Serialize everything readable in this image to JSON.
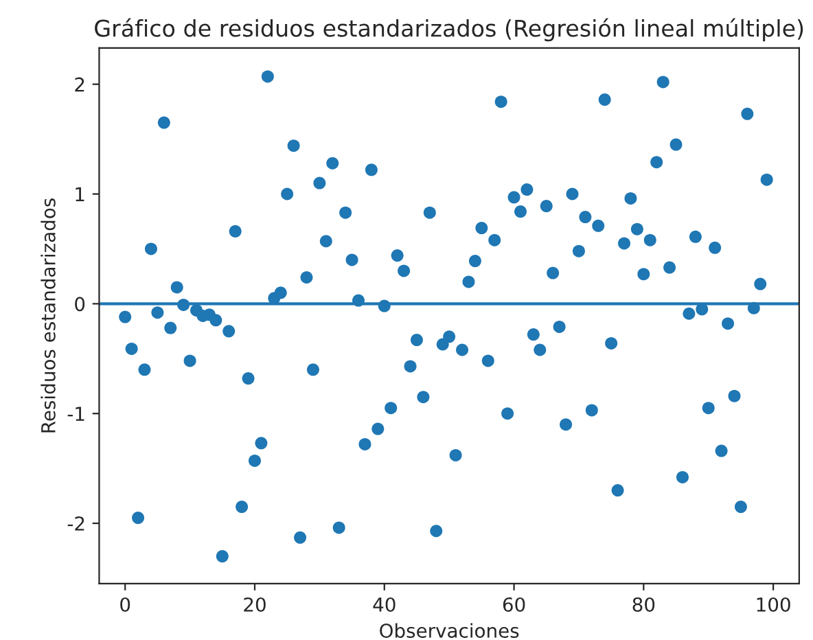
{
  "chart_data": {
    "type": "scatter",
    "title": "Gráfico de residuos estandarizados (Regresión lineal múltiple)",
    "xlabel": "Observaciones",
    "ylabel": "Residuos estandarizados",
    "x": [
      0,
      1,
      2,
      3,
      4,
      5,
      6,
      7,
      8,
      9,
      10,
      11,
      12,
      13,
      14,
      15,
      16,
      17,
      18,
      19,
      20,
      21,
      22,
      23,
      24,
      25,
      26,
      27,
      28,
      29,
      30,
      31,
      32,
      33,
      34,
      35,
      36,
      37,
      38,
      39,
      40,
      41,
      42,
      43,
      44,
      45,
      46,
      47,
      48,
      49,
      50,
      51,
      52,
      53,
      54,
      55,
      56,
      57,
      58,
      59,
      60,
      61,
      62,
      63,
      64,
      65,
      66,
      67,
      68,
      69,
      70,
      71,
      72,
      73,
      74,
      75,
      76,
      77,
      78,
      79,
      80,
      81,
      82,
      83,
      84,
      85,
      86,
      87,
      88,
      89,
      90,
      91,
      92,
      93,
      94,
      95,
      96,
      97,
      98,
      99
    ],
    "series": [
      {
        "color": "#1f77b4",
        "values": [
          -0.12,
          -0.41,
          -1.95,
          -0.6,
          0.5,
          -0.08,
          1.65,
          -0.22,
          0.15,
          -0.01,
          -0.52,
          -0.06,
          -0.11,
          -0.1,
          -0.15,
          -2.3,
          -0.25,
          0.66,
          -1.85,
          -0.68,
          -1.43,
          -1.27,
          2.07,
          0.05,
          0.1,
          1.0,
          1.44,
          -2.13,
          0.24,
          -0.6,
          1.1,
          0.57,
          1.28,
          -2.04,
          0.83,
          0.4,
          0.03,
          -1.28,
          1.22,
          -1.14,
          -0.02,
          -0.95,
          0.44,
          0.3,
          -0.57,
          -0.33,
          -0.85,
          0.83,
          -2.07,
          -0.37,
          -0.3,
          -1.38,
          -0.42,
          0.2,
          0.39,
          0.69,
          -0.52,
          0.58,
          1.84,
          -1.0,
          0.97,
          0.84,
          1.04,
          -0.28,
          -0.42,
          0.89,
          0.28,
          -0.21,
          -1.1,
          1.0,
          0.48,
          0.79,
          -0.97,
          0.71,
          1.86,
          -0.36,
          -1.7,
          0.55,
          0.96,
          0.68,
          0.27,
          0.58,
          1.29,
          2.02,
          0.33,
          1.45,
          -1.58,
          -0.09,
          0.61,
          -0.05,
          -0.95,
          0.51,
          -1.34,
          -0.18,
          -0.84,
          -1.85,
          1.73,
          -0.04,
          0.18,
          1.13
        ]
      }
    ],
    "xlim": [
      -4,
      104
    ],
    "ylim": [
      -2.55,
      2.33
    ],
    "xticks": [
      0,
      20,
      40,
      60,
      80,
      100
    ],
    "yticks": [
      -2,
      -1,
      0,
      1,
      2
    ],
    "ref_lines": [
      {
        "axis": "y",
        "value": 0,
        "color": "#1f77b4",
        "line_style": "solid"
      }
    ],
    "marker": "circle",
    "grid": false,
    "legend": false
  }
}
